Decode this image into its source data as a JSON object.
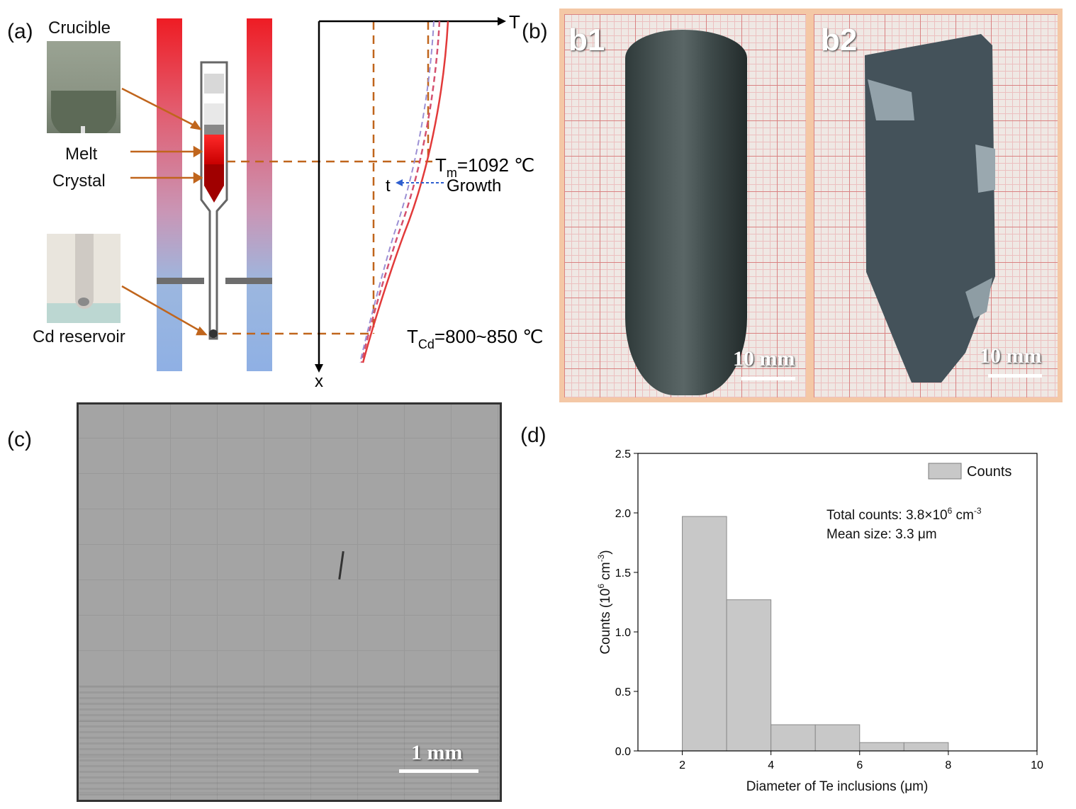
{
  "panel_a": {
    "label": "(a)",
    "crucible": "Crucible",
    "melt": "Melt",
    "crystal": "Crystal",
    "cd_reservoir": "Cd reservoir",
    "axis_t": "T",
    "axis_x": "x",
    "tm_label": "T",
    "tm_sub": "m",
    "tm_value": "=1092 ℃",
    "t_label": "t",
    "growth": "Growth",
    "tcd_label": "T",
    "tcd_sub": "Cd",
    "tcd_value": "=800~850 ℃"
  },
  "panel_b": {
    "label": "(b)",
    "b1": "b1",
    "b2": "b2",
    "scale1": "10 mm",
    "scale2": "10 mm"
  },
  "panel_c": {
    "label": "(c)",
    "scale": "1 mm"
  },
  "panel_d": {
    "label": "(d)",
    "legend": "Counts",
    "annot1_pre": "Total counts: 3.8×10",
    "annot1_sup": "6",
    "annot1_post": " cm",
    "annot1_sup2": "-3",
    "annot2": "Mean size: 3.3 μm"
  },
  "chart_data": {
    "type": "bar",
    "bins": [
      [
        2,
        3
      ],
      [
        3,
        4
      ],
      [
        4,
        5
      ],
      [
        5,
        6
      ],
      [
        6,
        7
      ],
      [
        7,
        8
      ]
    ],
    "values": [
      1.97,
      1.27,
      0.22,
      0.22,
      0.07,
      0.07
    ],
    "xlabel": "Diameter of Te inclusions (μm)",
    "ylabel_pre": "Counts (10",
    "ylabel_sup": "6",
    "ylabel_mid": " cm",
    "ylabel_sup2": "-3",
    "ylabel_post": ")",
    "xlim": [
      1,
      10
    ],
    "ylim": [
      0,
      2.5
    ],
    "xticks": [
      2,
      4,
      6,
      8,
      10
    ],
    "yticks": [
      0.0,
      0.5,
      1.0,
      1.5,
      2.0,
      2.5
    ],
    "legend": [
      "Counts"
    ],
    "legend_position": "top-right",
    "grid": false,
    "bar_color": "#c8c8c8"
  }
}
